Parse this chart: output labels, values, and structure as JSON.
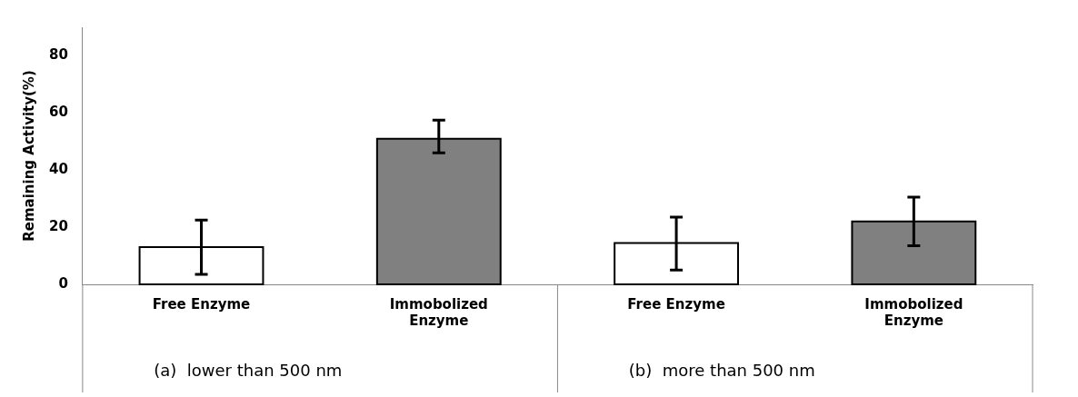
{
  "chart_data": {
    "type": "bar",
    "ylabel": "Remaining Activity(%)",
    "categories": [
      "Free Enzyme",
      "Immobolized Enzyme",
      "Free Enzyme",
      "Immobolized Enzyme"
    ],
    "values": [
      13,
      51,
      14.5,
      22
    ],
    "colors": [
      "#ffffff",
      "#808080",
      "#ffffff",
      "#808080"
    ],
    "errors": [
      [
        3.5,
        22.5
      ],
      [
        46,
        57.5
      ],
      [
        5,
        23.5
      ],
      [
        13.5,
        30.5
      ]
    ],
    "ylim": [
      0,
      90
    ],
    "yticks": [
      0,
      20,
      40,
      60,
      80
    ],
    "grid": false,
    "legend": false,
    "annotations": [
      "(a)  lower than 500 nm",
      "(b)  more than 500 nm"
    ]
  }
}
